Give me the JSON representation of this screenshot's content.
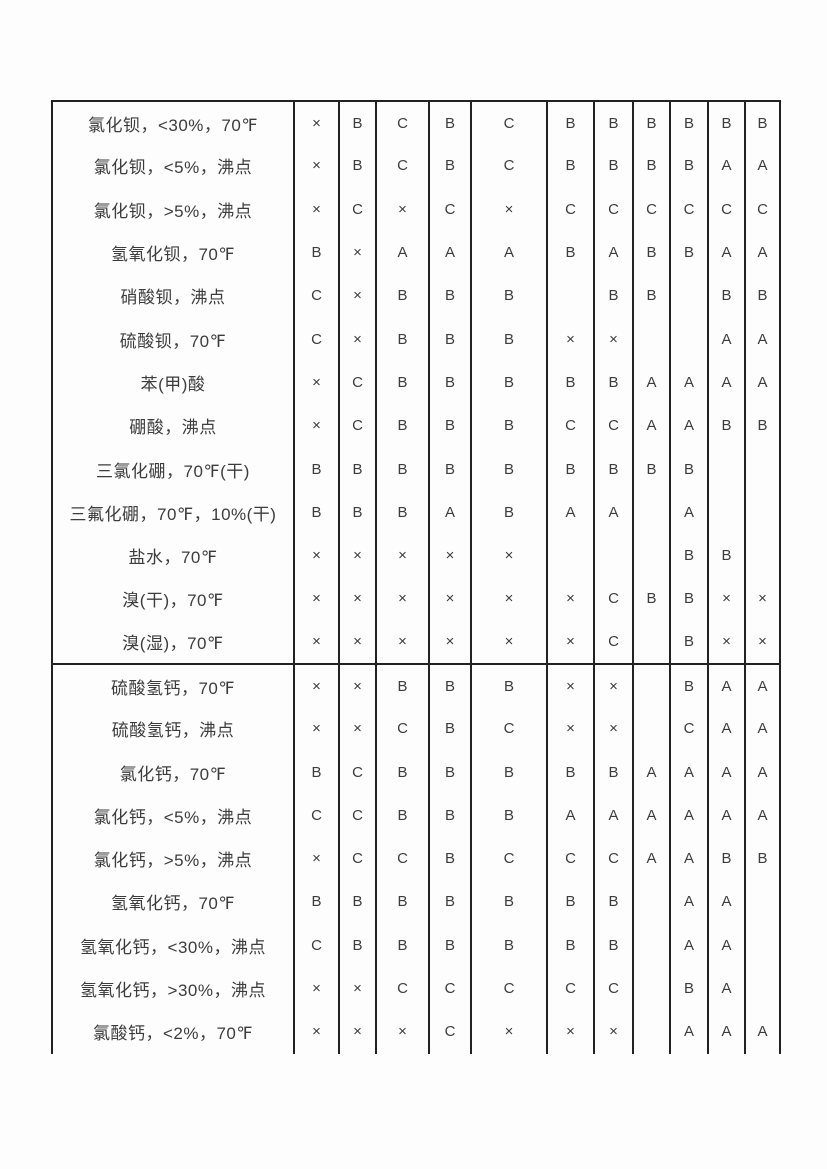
{
  "page": {
    "background": "#fdfdfd",
    "text_color": "#3c3c3c",
    "border_color": "#222222"
  },
  "table": {
    "description": "chemical-compatibility-rating-table",
    "value_columns": 11,
    "rating_symbols": [
      "A",
      "B",
      "C",
      "×"
    ],
    "groups": [
      {
        "rows": [
          {
            "name": "氯化钡，<30%，70℉",
            "values": [
              "×",
              "B",
              "C",
              "B",
              "C",
              "B",
              "B",
              "B",
              "B",
              "B",
              "B"
            ]
          },
          {
            "name": "氯化钡，<5%，沸点",
            "values": [
              "×",
              "B",
              "C",
              "B",
              "C",
              "B",
              "B",
              "B",
              "B",
              "A",
              "A"
            ]
          },
          {
            "name": "氯化钡，>5%，沸点",
            "values": [
              "×",
              "C",
              "×",
              "C",
              "×",
              "C",
              "C",
              "C",
              "C",
              "C",
              "C"
            ]
          },
          {
            "name": "氢氧化钡，70℉",
            "values": [
              "B",
              "×",
              "A",
              "A",
              "A",
              "B",
              "A",
              "B",
              "B",
              "A",
              "A"
            ]
          },
          {
            "name": "硝酸钡，沸点",
            "values": [
              "C",
              "×",
              "B",
              "B",
              "B",
              "",
              "B",
              "B",
              "",
              "B",
              "B"
            ]
          },
          {
            "name": "硫酸钡，70℉",
            "values": [
              "C",
              "×",
              "B",
              "B",
              "B",
              "×",
              "×",
              "",
              "",
              "A",
              "A"
            ]
          },
          {
            "name": "苯(甲)酸",
            "values": [
              "×",
              "C",
              "B",
              "B",
              "B",
              "B",
              "B",
              "A",
              "A",
              "A",
              "A"
            ]
          },
          {
            "name": "硼酸，沸点",
            "values": [
              "×",
              "C",
              "B",
              "B",
              "B",
              "C",
              "C",
              "A",
              "A",
              "B",
              "B"
            ]
          },
          {
            "name": "三氯化硼，70℉(干)",
            "values": [
              "B",
              "B",
              "B",
              "B",
              "B",
              "B",
              "B",
              "B",
              "B",
              "",
              ""
            ]
          },
          {
            "name": "三氟化硼，70℉，10%(干)",
            "values": [
              "B",
              "B",
              "B",
              "A",
              "B",
              "A",
              "A",
              "",
              "A",
              "",
              ""
            ]
          },
          {
            "name": "盐水，70℉",
            "values": [
              "×",
              "×",
              "×",
              "×",
              "×",
              "",
              "",
              "",
              "B",
              "B",
              ""
            ]
          },
          {
            "name": "溴(干)，70℉",
            "values": [
              "×",
              "×",
              "×",
              "×",
              "×",
              "×",
              "C",
              "B",
              "B",
              "×",
              "×"
            ]
          },
          {
            "name": "溴(湿)，70℉",
            "values": [
              "×",
              "×",
              "×",
              "×",
              "×",
              "×",
              "C",
              "",
              "B",
              "×",
              "×"
            ]
          }
        ]
      },
      {
        "rows": [
          {
            "name": "硫酸氢钙，70℉",
            "values": [
              "×",
              "×",
              "B",
              "B",
              "B",
              "×",
              "×",
              "",
              "B",
              "A",
              "A"
            ]
          },
          {
            "name": "硫酸氢钙，沸点",
            "values": [
              "×",
              "×",
              "C",
              "B",
              "C",
              "×",
              "×",
              "",
              "C",
              "A",
              "A"
            ]
          },
          {
            "name": "氯化钙，70℉",
            "values": [
              "B",
              "C",
              "B",
              "B",
              "B",
              "B",
              "B",
              "A",
              "A",
              "A",
              "A"
            ]
          },
          {
            "name": "氯化钙，<5%，沸点",
            "values": [
              "C",
              "C",
              "B",
              "B",
              "B",
              "A",
              "A",
              "A",
              "A",
              "A",
              "A"
            ]
          },
          {
            "name": "氯化钙，>5%，沸点",
            "values": [
              "×",
              "C",
              "C",
              "B",
              "C",
              "C",
              "C",
              "A",
              "A",
              "B",
              "B"
            ]
          },
          {
            "name": "氢氧化钙，70℉",
            "values": [
              "B",
              "B",
              "B",
              "B",
              "B",
              "B",
              "B",
              "",
              "A",
              "A",
              ""
            ]
          },
          {
            "name": "氢氧化钙，<30%，沸点",
            "values": [
              "C",
              "B",
              "B",
              "B",
              "B",
              "B",
              "B",
              "",
              "A",
              "A",
              ""
            ]
          },
          {
            "name": "氢氧化钙，>30%，沸点",
            "values": [
              "×",
              "×",
              "C",
              "C",
              "C",
              "C",
              "C",
              "",
              "B",
              "A",
              ""
            ]
          },
          {
            "name": "氯酸钙，<2%，70℉",
            "values": [
              "×",
              "×",
              "×",
              "C",
              "×",
              "×",
              "×",
              "",
              "A",
              "A",
              "A"
            ]
          }
        ]
      }
    ]
  }
}
